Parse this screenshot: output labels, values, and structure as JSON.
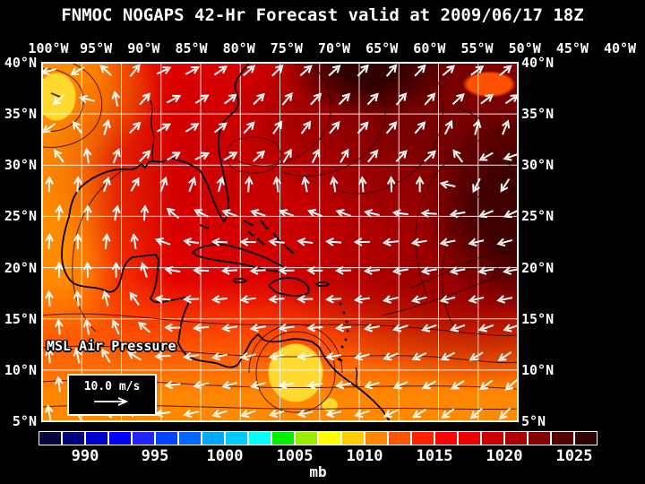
{
  "header": {
    "title": "FNMOC NOGAPS 42-Hr Forecast valid at 2009/06/17 18Z"
  },
  "axes": {
    "lon_labels": [
      "100°W",
      "95°W",
      "90°W",
      "85°W",
      "80°W",
      "75°W",
      "70°W",
      "65°W",
      "60°W",
      "55°W",
      "50°W",
      "45°W",
      "40°W"
    ],
    "lat_labels": [
      "40°N",
      "35°N",
      "30°N",
      "25°N",
      "20°N",
      "15°N",
      "10°N",
      "5°N"
    ]
  },
  "map": {
    "field_label": "MSL Air Pressure",
    "wind_legend": {
      "speed_label": "10.0 m/s",
      "arrow_icon": "right-arrow"
    },
    "wind_grid": {
      "note": "arrow directions in degrees CCW from east; rows lat 40N..5N step 5; cols lon 100W..40W step 5",
      "rows": [
        [
          195,
          215,
          60,
          25,
          30,
          40,
          45,
          40,
          45,
          50,
          45,
          35,
          40
        ],
        [
          240,
          100,
          50,
          30,
          35,
          45,
          55,
          50,
          45,
          50,
          50,
          40,
          30
        ],
        [
          90,
          85,
          50,
          30,
          20,
          35,
          60,
          70,
          55,
          45,
          40,
          270,
          255
        ],
        [
          85,
          90,
          70,
          150,
          170,
          175,
          170,
          165,
          175,
          185,
          190,
          195,
          200
        ],
        [
          90,
          92,
          85,
          170,
          180,
          185,
          180,
          178,
          183,
          188,
          190,
          190,
          190
        ],
        [
          95,
          100,
          120,
          178,
          186,
          190,
          186,
          182,
          188,
          195,
          198,
          195,
          192
        ],
        [
          95,
          105,
          140,
          184,
          192,
          195,
          190,
          186,
          192,
          202,
          208,
          212,
          218
        ],
        [
          100,
          120,
          160,
          188,
          196,
          200,
          195,
          190,
          196,
          206,
          214,
          220,
          226
        ]
      ]
    }
  },
  "colorbar": {
    "units": "mb",
    "tick_labels": [
      "990",
      "995",
      "1000",
      "1005",
      "1010",
      "1015",
      "1020",
      "1025"
    ],
    "cell_colors": [
      "#050540",
      "#00007f",
      "#0000cc",
      "#0000ff",
      "#2222ff",
      "#0044ff",
      "#0066ff",
      "#00aaff",
      "#00ccff",
      "#00ffff",
      "#00ee00",
      "#99ee00",
      "#ffff00",
      "#ffcc00",
      "#ff8800",
      "#ff5500",
      "#ff2200",
      "#ff0000",
      "#ee0000",
      "#cc0000",
      "#aa0000",
      "#880000",
      "#550000",
      "#2e0000"
    ]
  },
  "colors": {
    "background": "#000000",
    "gridlines": "#ffffff",
    "coastline": "#000000",
    "wind_arrows": "#ffffff",
    "low_pressure_fill": "#ffd92e",
    "high_pressure_fill": "#2e0000"
  }
}
